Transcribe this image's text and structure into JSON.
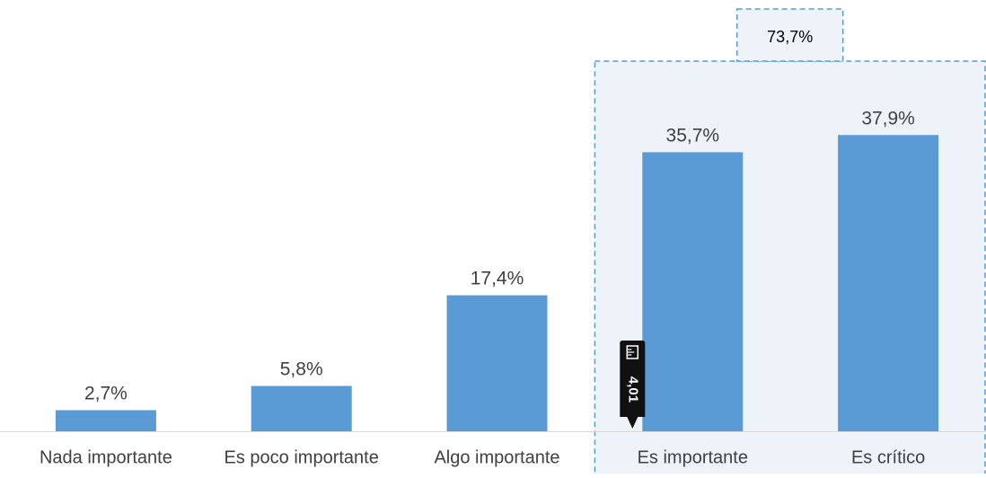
{
  "chart_data": {
    "type": "bar",
    "categories": [
      "Nada importante",
      "Es poco importante",
      "Algo importante",
      "Es importante",
      "Es crítico"
    ],
    "values": [
      2.7,
      5.8,
      17.4,
      35.7,
      37.9
    ],
    "data_labels": [
      "2,7%",
      "5,8%",
      "17,4%",
      "35,7%",
      "37,9%"
    ],
    "ylim": [
      0,
      40
    ],
    "grid": false,
    "legend": "none",
    "bar_color": "#5b9bd5",
    "annotation": {
      "label": "73,7%",
      "grouped_categories": [
        "Es importante",
        "Es crítico"
      ],
      "border_color": "#5b9bd5",
      "fill_color": "#eef3f9"
    },
    "marker": {
      "label": "4,01",
      "icon": "ruler-icon",
      "category": "Es importante",
      "background": "#111111",
      "text_color": "#ffffff"
    }
  }
}
